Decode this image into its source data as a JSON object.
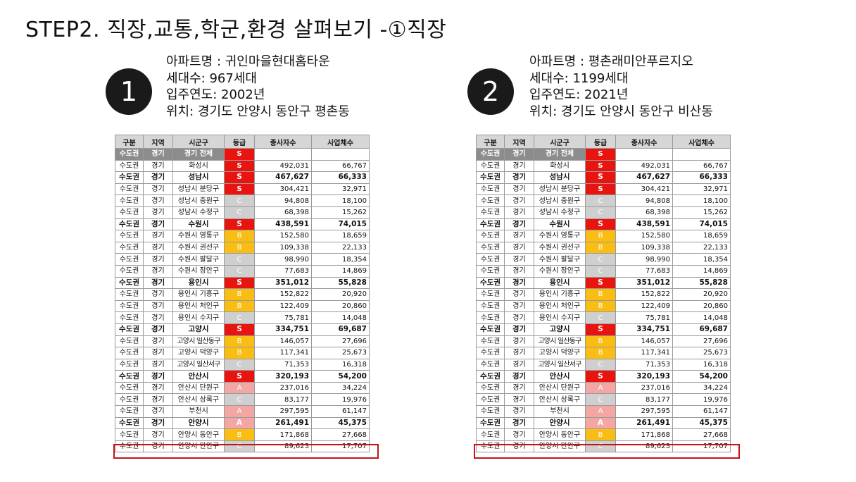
{
  "title": "STEP2. 직장,교통,학군,환경 살펴보기 -①직장",
  "headers": [
    "구분",
    "지역",
    "시군구",
    "등급",
    "종사자수",
    "사업체수"
  ],
  "apartments": [
    {
      "number": "1",
      "lines": [
        "아파트명 : 귀인마을현대홈타운",
        "세대수: 967세대",
        "입주연도: 2002년",
        "위치: 경기도 안양시 동안구 평촌동"
      ]
    },
    {
      "number": "2",
      "lines": [
        "아파트명 : 평촌래미안푸르지오",
        "세대수: 1199세대",
        "입주연도: 2021년",
        "위치: 경기도 안양시 동안구 비산동"
      ]
    }
  ],
  "rows": [
    {
      "gu": "수도권",
      "region": "경기",
      "sigungu": "경기 전체",
      "grade": "S",
      "workers": "",
      "biz": "",
      "style": "gray"
    },
    {
      "gu": "수도권",
      "region": "경기",
      "sigungu": "화성시",
      "grade": "S",
      "workers": "492,031",
      "biz": "66,767",
      "style": "normal"
    },
    {
      "gu": "수도권",
      "region": "경기",
      "sigungu": "성남시",
      "grade": "S",
      "workers": "467,627",
      "biz": "66,333",
      "style": "bold"
    },
    {
      "gu": "수도권",
      "region": "경기",
      "sigungu": "성남시 분당구",
      "grade": "S",
      "workers": "304,421",
      "biz": "32,971",
      "style": "normal"
    },
    {
      "gu": "수도권",
      "region": "경기",
      "sigungu": "성남시 중원구",
      "grade": "C",
      "workers": "94,808",
      "biz": "18,100",
      "style": "normal"
    },
    {
      "gu": "수도권",
      "region": "경기",
      "sigungu": "성남시 수정구",
      "grade": "C",
      "workers": "68,398",
      "biz": "15,262",
      "style": "normal"
    },
    {
      "gu": "수도권",
      "region": "경기",
      "sigungu": "수원시",
      "grade": "S",
      "workers": "438,591",
      "biz": "74,015",
      "style": "bold"
    },
    {
      "gu": "수도권",
      "region": "경기",
      "sigungu": "수원시 영통구",
      "grade": "B",
      "workers": "152,580",
      "biz": "18,659",
      "style": "normal"
    },
    {
      "gu": "수도권",
      "region": "경기",
      "sigungu": "수원시 권선구",
      "grade": "B",
      "workers": "109,338",
      "biz": "22,133",
      "style": "normal"
    },
    {
      "gu": "수도권",
      "region": "경기",
      "sigungu": "수원시 팔달구",
      "grade": "C",
      "workers": "98,990",
      "biz": "18,354",
      "style": "normal"
    },
    {
      "gu": "수도권",
      "region": "경기",
      "sigungu": "수원시 장안구",
      "grade": "C",
      "workers": "77,683",
      "biz": "14,869",
      "style": "normal"
    },
    {
      "gu": "수도권",
      "region": "경기",
      "sigungu": "용인시",
      "grade": "S",
      "workers": "351,012",
      "biz": "55,828",
      "style": "bold"
    },
    {
      "gu": "수도권",
      "region": "경기",
      "sigungu": "용인시 기흥구",
      "grade": "B",
      "workers": "152,822",
      "biz": "20,920",
      "style": "normal"
    },
    {
      "gu": "수도권",
      "region": "경기",
      "sigungu": "용인시 처인구",
      "grade": "B",
      "workers": "122,409",
      "biz": "20,860",
      "style": "normal"
    },
    {
      "gu": "수도권",
      "region": "경기",
      "sigungu": "용인시 수지구",
      "grade": "C",
      "workers": "75,781",
      "biz": "14,048",
      "style": "normal"
    },
    {
      "gu": "수도권",
      "region": "경기",
      "sigungu": "고양시",
      "grade": "S",
      "workers": "334,751",
      "biz": "69,687",
      "style": "bold"
    },
    {
      "gu": "수도권",
      "region": "경기",
      "sigungu": "고양시 일산동구",
      "grade": "B",
      "workers": "146,057",
      "biz": "27,696",
      "style": "normal"
    },
    {
      "gu": "수도권",
      "region": "경기",
      "sigungu": "고양시 덕양구",
      "grade": "B",
      "workers": "117,341",
      "biz": "25,673",
      "style": "normal"
    },
    {
      "gu": "수도권",
      "region": "경기",
      "sigungu": "고양시 일산서구",
      "grade": "C",
      "workers": "71,353",
      "biz": "16,318",
      "style": "normal"
    },
    {
      "gu": "수도권",
      "region": "경기",
      "sigungu": "안산시",
      "grade": "S",
      "workers": "320,193",
      "biz": "54,200",
      "style": "bold"
    },
    {
      "gu": "수도권",
      "region": "경기",
      "sigungu": "안산시 단원구",
      "grade": "A",
      "workers": "237,016",
      "biz": "34,224",
      "style": "normal"
    },
    {
      "gu": "수도권",
      "region": "경기",
      "sigungu": "안산시 상록구",
      "grade": "C",
      "workers": "83,177",
      "biz": "19,976",
      "style": "normal"
    },
    {
      "gu": "수도권",
      "region": "경기",
      "sigungu": "부천시",
      "grade": "A",
      "workers": "297,595",
      "biz": "61,147",
      "style": "normal"
    },
    {
      "gu": "수도권",
      "region": "경기",
      "sigungu": "안양시",
      "grade": "A",
      "workers": "261,491",
      "biz": "45,375",
      "style": "bold"
    },
    {
      "gu": "수도권",
      "region": "경기",
      "sigungu": "안양시 동안구",
      "grade": "B",
      "workers": "171,868",
      "biz": "27,668",
      "style": "normal",
      "highlight": true
    },
    {
      "gu": "수도권",
      "region": "경기",
      "sigungu": "안양시 만안구",
      "grade": "C",
      "workers": "89,623",
      "biz": "17,707",
      "style": "normal"
    }
  ]
}
